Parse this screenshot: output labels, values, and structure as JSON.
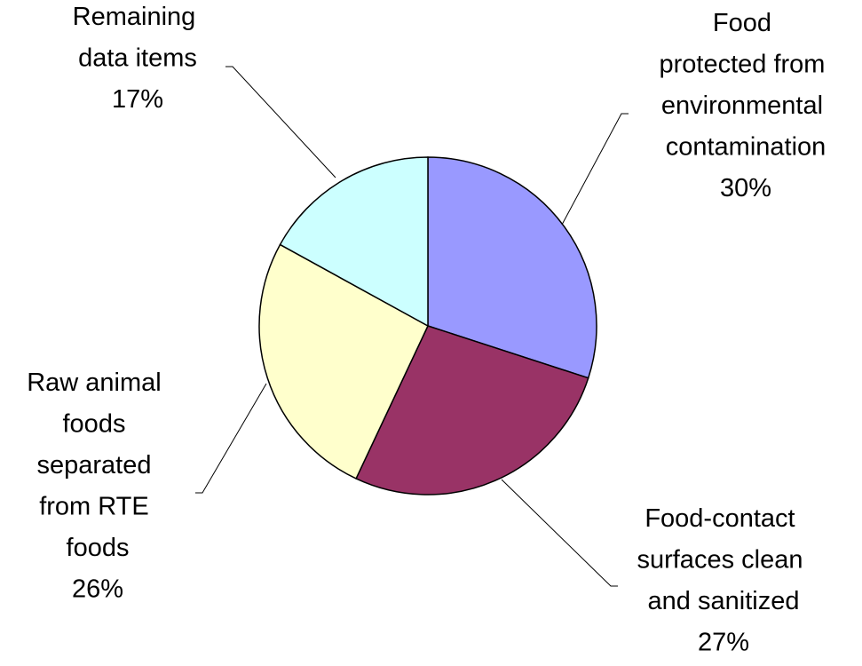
{
  "chart_data": {
    "type": "pie",
    "categories": [
      "Food protected from environmental contamination",
      "Food-contact surfaces clean and sanitized",
      "Raw animal foods separated from RTE foods",
      "Remaining data items"
    ],
    "values": [
      30,
      27,
      26,
      17
    ],
    "value_labels": [
      "30%",
      "27%",
      "26%",
      "17%"
    ],
    "colors": [
      "#9999ff",
      "#993366",
      "#ffffcc",
      "#ccffff"
    ]
  }
}
